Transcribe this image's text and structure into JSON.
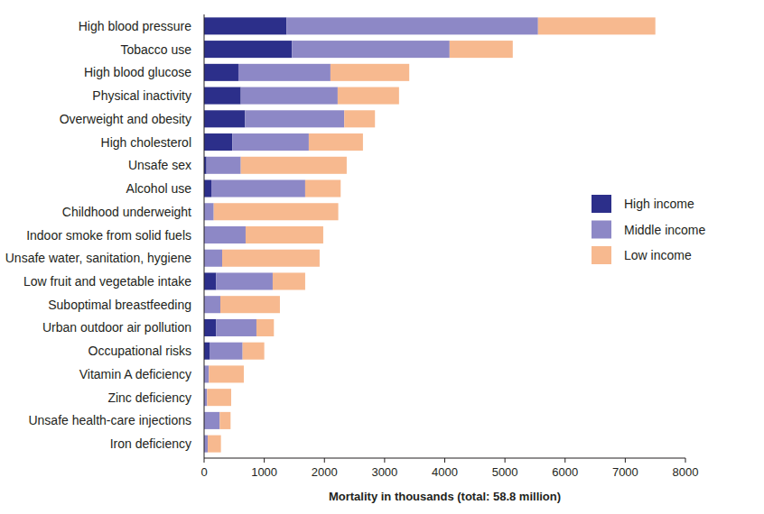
{
  "chart_data": {
    "type": "bar",
    "orientation": "horizontal",
    "stacked": true,
    "legend": "right",
    "xlabel": "Mortality in thousands (total: 58.8 million)",
    "categories": [
      "High blood pressure",
      "Tobacco use",
      "High blood glucose",
      "Physical inactivity",
      "Overweight and obesity",
      "High cholesterol",
      "Unsafe sex",
      "Alcohol use",
      "Childhood underweight",
      "Indoor smoke from solid fuels",
      "Unsafe water, sanitation, hygiene",
      "Low fruit and vegetable intake",
      "Suboptimal breastfeeding",
      "Urban outdoor air pollution",
      "Occupational risks",
      "Vitamin A deficiency",
      "Zinc deficiency",
      "Unsafe health-care injections",
      "Iron deficiency"
    ],
    "series": [
      {
        "name": "High income",
        "color": "#2c2f8a",
        "values": [
          1370,
          1460,
          570,
          610,
          680,
          470,
          40,
          120,
          0,
          0,
          0,
          200,
          0,
          200,
          90,
          0,
          0,
          0,
          0
        ]
      },
      {
        "name": "Middle income",
        "color": "#8d88c6",
        "values": [
          4180,
          2620,
          1530,
          1610,
          1650,
          1270,
          570,
          1560,
          160,
          690,
          300,
          940,
          270,
          670,
          550,
          80,
          50,
          260,
          60
        ]
      },
      {
        "name": "Low income",
        "color": "#f7b98f",
        "values": [
          1950,
          1050,
          1310,
          1020,
          510,
          900,
          1760,
          590,
          2070,
          1290,
          1620,
          540,
          990,
          290,
          360,
          580,
          400,
          180,
          220
        ]
      }
    ],
    "xlim": [
      0,
      8000
    ],
    "xticks": [
      0,
      1000,
      2000,
      3000,
      4000,
      5000,
      6000,
      7000,
      8000
    ],
    "grid": false
  }
}
